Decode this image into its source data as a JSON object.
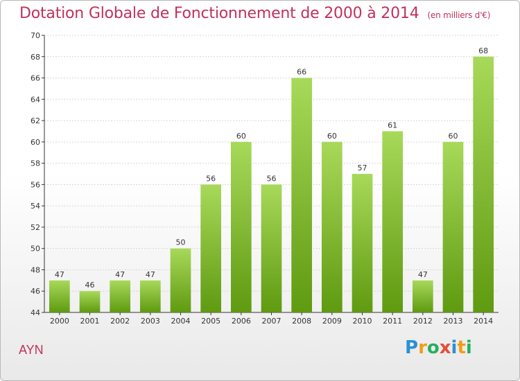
{
  "title": "Dotation Globale de Fonctionnement de 2000 à 2014",
  "unit_note": "(en milliers d'€)",
  "commune": "AYN",
  "logo": {
    "letters": [
      "P",
      "r",
      "o",
      "x",
      "i",
      "t",
      "i"
    ],
    "colors": [
      "#2b8fd6",
      "#f39c12",
      "#27ae60",
      "#e74c3c",
      "#2b8fd6",
      "#f39c12",
      "#27ae60"
    ]
  },
  "colors": {
    "title": "#c0325a",
    "bar_light": "#a8d95a",
    "bar_dark": "#5f9a10",
    "axis": "#333333",
    "grid": "#d6d6d6"
  },
  "chart_data": {
    "type": "bar",
    "title": "Dotation Globale de Fonctionnement de 2000 à 2014",
    "xlabel": "",
    "ylabel": "",
    "categories": [
      "2000",
      "2001",
      "2002",
      "2003",
      "2004",
      "2005",
      "2006",
      "2007",
      "2008",
      "2009",
      "2010",
      "2011",
      "2012",
      "2013",
      "2014"
    ],
    "values": [
      47,
      46,
      47,
      47,
      50,
      56,
      60,
      56,
      66,
      60,
      57,
      61,
      47,
      60,
      68
    ],
    "ylim": [
      44,
      70
    ],
    "yticks": [
      44,
      46,
      48,
      50,
      52,
      54,
      56,
      58,
      60,
      62,
      64,
      66,
      68,
      70
    ],
    "grid": true,
    "legend": "none"
  }
}
